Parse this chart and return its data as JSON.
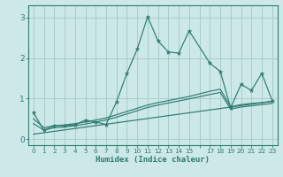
{
  "xlabel": "Humidex (Indice chaleur)",
  "bg_color": "#cce8e8",
  "grid_color": "#aacccc",
  "line_color": "#2e7b6e",
  "xlim": [
    -0.5,
    23.5
  ],
  "ylim": [
    -0.15,
    3.3
  ],
  "yticks": [
    0,
    1,
    2,
    3
  ],
  "xtick_positions": [
    0,
    1,
    2,
    3,
    4,
    5,
    6,
    7,
    8,
    9,
    10,
    11,
    12,
    13,
    14,
    15,
    16,
    17,
    18,
    19,
    20,
    21,
    22,
    23
  ],
  "xtick_labels": [
    "0",
    "1",
    "2",
    "3",
    "4",
    "5",
    "6",
    "7",
    "8",
    "9",
    "10",
    "11",
    "12",
    "13",
    "14",
    "15",
    "",
    "17",
    "18",
    "19",
    "20",
    "21",
    "22",
    "23"
  ],
  "series1_x": [
    0,
    1,
    2,
    3,
    4,
    5,
    6,
    7,
    8,
    9,
    10,
    11,
    12,
    13,
    14,
    15,
    17,
    18,
    19,
    20,
    21,
    22,
    23
  ],
  "series1_y": [
    0.65,
    0.22,
    0.33,
    0.33,
    0.35,
    0.47,
    0.42,
    0.36,
    0.92,
    1.62,
    2.22,
    3.02,
    2.42,
    2.15,
    2.12,
    2.67,
    1.87,
    1.67,
    0.77,
    1.35,
    1.2,
    1.62,
    0.95
  ],
  "series2_x": [
    0,
    1,
    2,
    3,
    4,
    5,
    6,
    7,
    8,
    9,
    10,
    11,
    12,
    13,
    14,
    15,
    17,
    18,
    19,
    20,
    21,
    22,
    23
  ],
  "series2_y": [
    0.5,
    0.28,
    0.33,
    0.35,
    0.38,
    0.42,
    0.47,
    0.52,
    0.6,
    0.68,
    0.76,
    0.84,
    0.9,
    0.95,
    1.0,
    1.05,
    1.18,
    1.23,
    0.8,
    0.85,
    0.88,
    0.9,
    0.93
  ],
  "series3_x": [
    0,
    1,
    2,
    3,
    4,
    5,
    6,
    7,
    8,
    9,
    10,
    11,
    12,
    13,
    14,
    15,
    17,
    18,
    19,
    20,
    21,
    22,
    23
  ],
  "series3_y": [
    0.38,
    0.22,
    0.28,
    0.3,
    0.33,
    0.37,
    0.42,
    0.47,
    0.54,
    0.62,
    0.7,
    0.78,
    0.84,
    0.89,
    0.94,
    0.99,
    1.1,
    1.15,
    0.74,
    0.79,
    0.82,
    0.85,
    0.88
  ],
  "series4_x": [
    0,
    23
  ],
  "series4_y": [
    0.12,
    0.93
  ]
}
